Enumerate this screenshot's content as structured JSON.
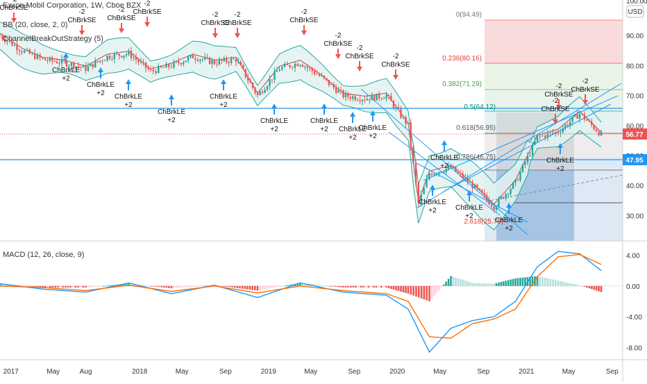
{
  "header": {
    "symbol_title": "Exxon Mobil Corporation, 1W, Cboe BZX",
    "indicator_bb": "BB (20, close, 2, 0)",
    "indicator_strategy": "ChannelBreakOutStrategy (5)"
  },
  "price_scale": {
    "currency": "USD",
    "top_tick": "100.00",
    "ticks": [
      "90.00",
      "80.00",
      "70.00",
      "60.00",
      "50.00",
      "40.00",
      "30.00"
    ],
    "last_price": "56.77",
    "level_price": "47.95"
  },
  "macd_panel": {
    "title": "MACD (12, 26, close, 9)",
    "ticks": [
      "4.00",
      "0.00",
      "-4.00",
      "-8.00"
    ]
  },
  "time_axis": {
    "ticks": [
      "2017",
      "May",
      "Aug",
      "2018",
      "May",
      "Sep",
      "2019",
      "May",
      "Sep",
      "2020",
      "May",
      "Sep",
      "2021",
      "May",
      "Sep"
    ]
  },
  "fib": {
    "labels": [
      "0(94.49)",
      "0.236(80.16)",
      "0.382(71.29)",
      "0.5(64.12)",
      "0.618(56.95)",
      "0.786(46.75)",
      "2.618(25.75)"
    ]
  },
  "signals": {
    "short_line1": "-2",
    "short_line2": "ChBrkSE",
    "long_line1": "ChBrkLE",
    "long_line2": "+2"
  },
  "colors": {
    "up": "#26a69a",
    "down": "#ef5350",
    "bb_fill": "#e0f2f1",
    "bb_line": "#26a69a",
    "bb_basis": "#b74a4a",
    "macd": "#2196f3",
    "signal": "#ff6d00",
    "hline": "#2196f3",
    "last_price_bg": "#ef5350",
    "level_bg": "#2196f3"
  },
  "chart_data": {
    "type": "line",
    "title": "Exxon Mobil Corporation, 1W, Cboe BZX",
    "price_axis_range": [
      22,
      100
    ],
    "macd_axis_range": [
      -9.5,
      5.5
    ],
    "series": [
      {
        "name": "close",
        "x": [
          "2016-12",
          "2017-02",
          "2017-04",
          "2017-06",
          "2017-08",
          "2017-10",
          "2017-12",
          "2018-02",
          "2018-04",
          "2018-06",
          "2018-08",
          "2018-10",
          "2018-12",
          "2019-02",
          "2019-04",
          "2019-06",
          "2019-08",
          "2019-10",
          "2019-12",
          "2020-02",
          "2020-03",
          "2020-04",
          "2020-06",
          "2020-08",
          "2020-10",
          "2020-12",
          "2021-02",
          "2021-04",
          "2021-06",
          "2021-08"
        ],
        "values": [
          90,
          85,
          82,
          81,
          79,
          83,
          84,
          78,
          80,
          83,
          81,
          82,
          70,
          79,
          81,
          76,
          70,
          69,
          70,
          60,
          34,
          44,
          46,
          40,
          33,
          41,
          56,
          58,
          64,
          57
        ]
      },
      {
        "name": "MACD",
        "x": [
          "2016-12",
          "2017-04",
          "2017-08",
          "2017-12",
          "2018-04",
          "2018-08",
          "2018-12",
          "2019-04",
          "2019-08",
          "2019-12",
          "2020-02",
          "2020-04",
          "2020-06",
          "2020-08",
          "2020-10",
          "2020-12",
          "2021-02",
          "2021-04",
          "2021-06",
          "2021-08"
        ],
        "values": [
          0.3,
          -0.4,
          -0.8,
          0.4,
          -1.0,
          0.1,
          -1.5,
          0.4,
          -0.8,
          -1.2,
          -3.0,
          -8.6,
          -5.5,
          -4.5,
          -4.0,
          -2.0,
          2.5,
          4.5,
          4.2,
          2.0
        ]
      },
      {
        "name": "Signal",
        "x": [
          "2016-12",
          "2017-04",
          "2017-08",
          "2017-12",
          "2018-04",
          "2018-08",
          "2018-12",
          "2019-04",
          "2019-08",
          "2019-12",
          "2020-02",
          "2020-04",
          "2020-06",
          "2020-08",
          "2020-10",
          "2020-12",
          "2021-02",
          "2021-04",
          "2021-06",
          "2021-08"
        ],
        "values": [
          0.0,
          -0.2,
          -0.6,
          0.1,
          -0.7,
          0.0,
          -0.9,
          0.0,
          -0.6,
          -1.0,
          -2.0,
          -6.6,
          -6.8,
          -4.9,
          -4.3,
          -3.0,
          1.2,
          3.8,
          4.1,
          2.8
        ]
      }
    ]
  }
}
